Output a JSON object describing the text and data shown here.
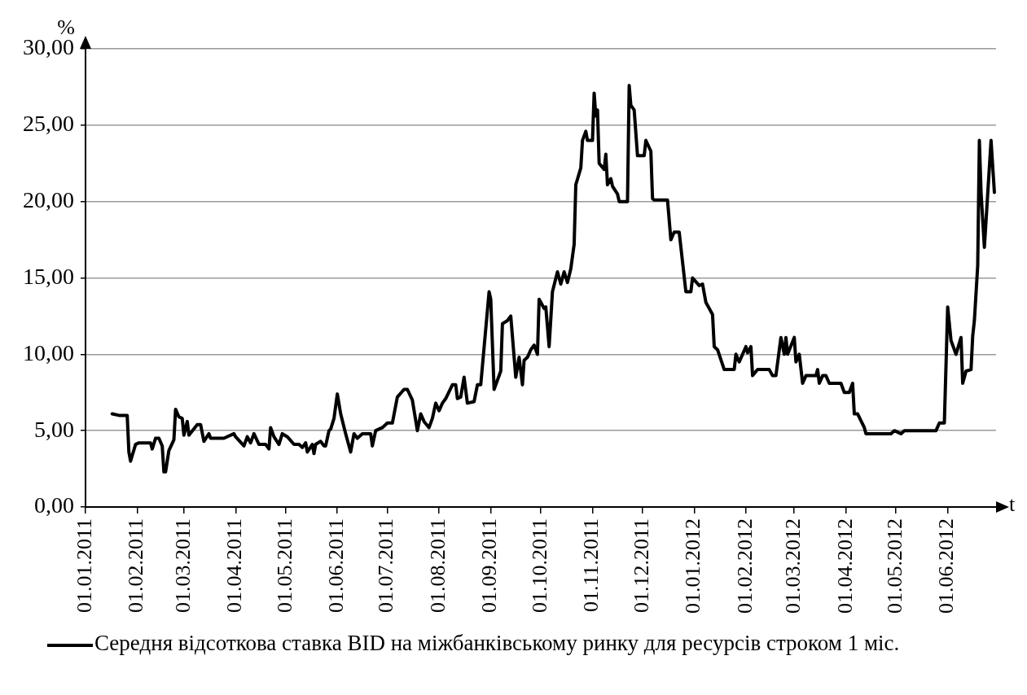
{
  "chart_data": {
    "type": "line",
    "xlabel": "t",
    "ylabel": "%",
    "legend": "bottom",
    "grid": "y",
    "marker": "none",
    "line_style": "solid",
    "xlim": [
      "2011-01-01",
      "2012-06-30"
    ],
    "xticks": [
      {
        "value": "2011-01-01",
        "label": "01.01.2011"
      },
      {
        "value": "2011-02-01",
        "label": "01.02.2011"
      },
      {
        "value": "2011-03-01",
        "label": "01.03.2011"
      },
      {
        "value": "2011-04-01",
        "label": "01.04.2011"
      },
      {
        "value": "2011-05-01",
        "label": "01.05.2011"
      },
      {
        "value": "2011-06-01",
        "label": "01.06.2011"
      },
      {
        "value": "2011-07-01",
        "label": "01.07.2011"
      },
      {
        "value": "2011-08-01",
        "label": "01.08.2011"
      },
      {
        "value": "2011-09-01",
        "label": "01.09.2011"
      },
      {
        "value": "2011-10-01",
        "label": "01.10.2011"
      },
      {
        "value": "2011-11-01",
        "label": "01.11.2011"
      },
      {
        "value": "2011-12-01",
        "label": "01.12.2011"
      },
      {
        "value": "2012-01-01",
        "label": "01.01.2012"
      },
      {
        "value": "2012-02-01",
        "label": "01.02.2012"
      },
      {
        "value": "2012-03-01",
        "label": "01.03.2012"
      },
      {
        "value": "2012-04-01",
        "label": "01.04.2012"
      },
      {
        "value": "2012-05-01",
        "label": "01.05.2012"
      },
      {
        "value": "2012-06-01",
        "label": "01.06.2012"
      }
    ],
    "ylim": [
      0,
      30
    ],
    "yticks": [
      {
        "value": 0,
        "label": "0,00"
      },
      {
        "value": 5,
        "label": "5,00"
      },
      {
        "value": 10,
        "label": "10,00"
      },
      {
        "value": 15,
        "label": "15,00"
      },
      {
        "value": 20,
        "label": "20,00"
      },
      {
        "value": 25,
        "label": "25,00"
      },
      {
        "value": 30,
        "label": "30,00"
      }
    ],
    "x": [
      "2011-01-17",
      "2011-01-21",
      "2011-01-26",
      "2011-01-27",
      "2011-01-28",
      "2011-01-31",
      "2011-02-02",
      "2011-02-09",
      "2011-02-10",
      "2011-02-12",
      "2011-02-14",
      "2011-02-16",
      "2011-02-17",
      "2011-02-18",
      "2011-02-20",
      "2011-02-23",
      "2011-02-24",
      "2011-02-26",
      "2011-02-28",
      "2011-03-01",
      "2011-03-03",
      "2011-03-04",
      "2011-03-09",
      "2011-03-11",
      "2011-03-13",
      "2011-03-16",
      "2011-03-17",
      "2011-03-25",
      "2011-03-31",
      "2011-04-01",
      "2011-04-06",
      "2011-04-08",
      "2011-04-10",
      "2011-04-12",
      "2011-04-15",
      "2011-04-19",
      "2011-04-21",
      "2011-04-22",
      "2011-04-24",
      "2011-04-27",
      "2011-04-29",
      "2011-05-02",
      "2011-05-06",
      "2011-05-09",
      "2011-05-11",
      "2011-05-13",
      "2011-05-14",
      "2011-05-17",
      "2011-05-18",
      "2011-05-19",
      "2011-05-22",
      "2011-05-24",
      "2011-05-25",
      "2011-05-27",
      "2011-05-28",
      "2011-05-30",
      "2011-06-01",
      "2011-06-03",
      "2011-06-06",
      "2011-06-08",
      "2011-06-09",
      "2011-06-11",
      "2011-06-13",
      "2011-06-16",
      "2011-06-21",
      "2011-06-22",
      "2011-06-24",
      "2011-06-28",
      "2011-07-01",
      "2011-07-04",
      "2011-07-07",
      "2011-07-11",
      "2011-07-13",
      "2011-07-16",
      "2011-07-19",
      "2011-07-21",
      "2011-07-23",
      "2011-07-26",
      "2011-07-28",
      "2011-07-30",
      "2011-08-01",
      "2011-08-03",
      "2011-08-05",
      "2011-08-09",
      "2011-08-11",
      "2011-08-12",
      "2011-08-14",
      "2011-08-16",
      "2011-08-18",
      "2011-08-22",
      "2011-08-24",
      "2011-08-26",
      "2011-08-31",
      "2011-09-01",
      "2011-09-03",
      "2011-09-07",
      "2011-09-08",
      "2011-09-11",
      "2011-09-13",
      "2011-09-16",
      "2011-09-18",
      "2011-09-20",
      "2011-09-21",
      "2011-09-23",
      "2011-09-25",
      "2011-09-27",
      "2011-09-29",
      "2011-09-30",
      "2011-10-03",
      "2011-10-04",
      "2011-10-06",
      "2011-10-08",
      "2011-10-11",
      "2011-10-13",
      "2011-10-15",
      "2011-10-17",
      "2011-10-19",
      "2011-10-21",
      "2011-10-22",
      "2011-10-25",
      "2011-10-26",
      "2011-10-28",
      "2011-10-29",
      "2011-11-01",
      "2011-11-02",
      "2011-11-03",
      "2011-11-04",
      "2011-11-05",
      "2011-11-08",
      "2011-11-09",
      "2011-11-10",
      "2011-11-12",
      "2011-11-13",
      "2011-11-16",
      "2011-11-17",
      "2011-11-22",
      "2011-11-23",
      "2011-11-24",
      "2011-11-26",
      "2011-11-28",
      "2011-12-02",
      "2011-12-03",
      "2011-12-06",
      "2011-12-07",
      "2011-12-08",
      "2011-12-16",
      "2011-12-18",
      "2011-12-20",
      "2011-12-23",
      "2011-12-27",
      "2011-12-30",
      "2011-12-31",
      "2012-01-04",
      "2012-01-06",
      "2012-01-08",
      "2012-01-12",
      "2012-01-13",
      "2012-01-15",
      "2012-01-19",
      "2012-01-25",
      "2012-01-26",
      "2012-01-28",
      "2012-02-01",
      "2012-02-02",
      "2012-02-04",
      "2012-02-05",
      "2012-02-08",
      "2012-02-15",
      "2012-02-17",
      "2012-02-19",
      "2012-02-22",
      "2012-02-24",
      "2012-02-25",
      "2012-02-26",
      "2012-03-01",
      "2012-03-02",
      "2012-03-04",
      "2012-03-06",
      "2012-03-08",
      "2012-03-14",
      "2012-03-15",
      "2012-03-16",
      "2012-03-18",
      "2012-03-20",
      "2012-03-22",
      "2012-03-29",
      "2012-03-31",
      "2012-04-03",
      "2012-04-05",
      "2012-04-06",
      "2012-04-08",
      "2012-04-12",
      "2012-04-13",
      "2012-04-28",
      "2012-04-30",
      "2012-05-04",
      "2012-05-06",
      "2012-05-25",
      "2012-05-27",
      "2012-05-30",
      "2012-06-01",
      "2012-06-03",
      "2012-06-06",
      "2012-06-09",
      "2012-06-10",
      "2012-06-12",
      "2012-06-15",
      "2012-06-16",
      "2012-06-17",
      "2012-06-19",
      "2012-06-20",
      "2012-06-21",
      "2012-06-23",
      "2012-06-27",
      "2012-06-29"
    ],
    "series": [
      {
        "name": "Середня відсоткова ставка BID на міжбанківському ринку для ресурсів строком 1 міс.",
        "color": "#000000",
        "values": [
          6.1,
          6.0,
          6.0,
          3.6,
          3.0,
          4.1,
          4.2,
          4.2,
          3.8,
          4.5,
          4.5,
          4.0,
          2.3,
          2.3,
          3.7,
          4.4,
          6.4,
          5.9,
          5.8,
          4.7,
          5.6,
          4.7,
          5.4,
          5.4,
          4.3,
          4.8,
          4.5,
          4.5,
          4.8,
          4.6,
          4.0,
          4.6,
          4.2,
          4.8,
          4.1,
          4.1,
          3.8,
          5.2,
          4.6,
          4.1,
          4.8,
          4.6,
          4.1,
          4.1,
          3.9,
          4.2,
          3.6,
          4.1,
          3.5,
          4.1,
          4.3,
          4.0,
          4.0,
          5.0,
          5.1,
          5.8,
          7.4,
          6.1,
          4.8,
          4.0,
          3.6,
          4.8,
          4.5,
          4.8,
          4.8,
          4.0,
          5.0,
          5.2,
          5.5,
          5.5,
          7.2,
          7.7,
          7.7,
          7.0,
          5.0,
          6.1,
          5.6,
          5.2,
          5.8,
          6.8,
          6.3,
          6.8,
          7.1,
          8.0,
          8.0,
          7.1,
          7.2,
          8.5,
          6.8,
          6.9,
          8.0,
          8.0,
          14.1,
          13.6,
          7.7,
          8.9,
          12.0,
          12.2,
          12.5,
          8.5,
          9.8,
          8.0,
          9.6,
          9.8,
          10.3,
          10.6,
          10.0,
          13.6,
          13.0,
          13.1,
          10.5,
          14.1,
          15.4,
          14.6,
          15.4,
          14.7,
          15.6,
          17.2,
          21.1,
          22.2,
          24.0,
          24.6,
          24.0,
          24.0,
          27.1,
          25.6,
          26.0,
          22.5,
          22.1,
          23.1,
          21.1,
          21.5,
          21.0,
          20.5,
          20.0,
          20.0,
          27.6,
          26.3,
          26.0,
          23.0,
          23.0,
          24.0,
          23.3,
          20.2,
          20.1,
          20.1,
          17.5,
          18.0,
          18.0,
          14.1,
          14.1,
          15.0,
          14.5,
          14.6,
          13.4,
          12.6,
          10.5,
          10.3,
          9.0,
          9.0,
          10.0,
          9.5,
          10.5,
          10.1,
          10.5,
          8.6,
          9.0,
          9.0,
          8.6,
          8.6,
          11.1,
          10.0,
          11.1,
          10.0,
          11.1,
          9.5,
          10.0,
          8.1,
          8.6,
          8.6,
          9.0,
          8.1,
          8.6,
          8.6,
          8.1,
          8.1,
          7.5,
          7.5,
          8.1,
          6.1,
          6.1,
          5.2,
          4.8,
          4.8,
          5.0,
          4.8,
          5.0,
          5.0,
          5.5,
          5.5,
          13.1,
          10.9,
          10.0,
          11.1,
          8.1,
          8.9,
          9.0,
          11.2,
          12.2,
          15.8,
          24.0,
          20.6,
          17.0,
          24.0,
          20.6
        ]
      }
    ]
  }
}
